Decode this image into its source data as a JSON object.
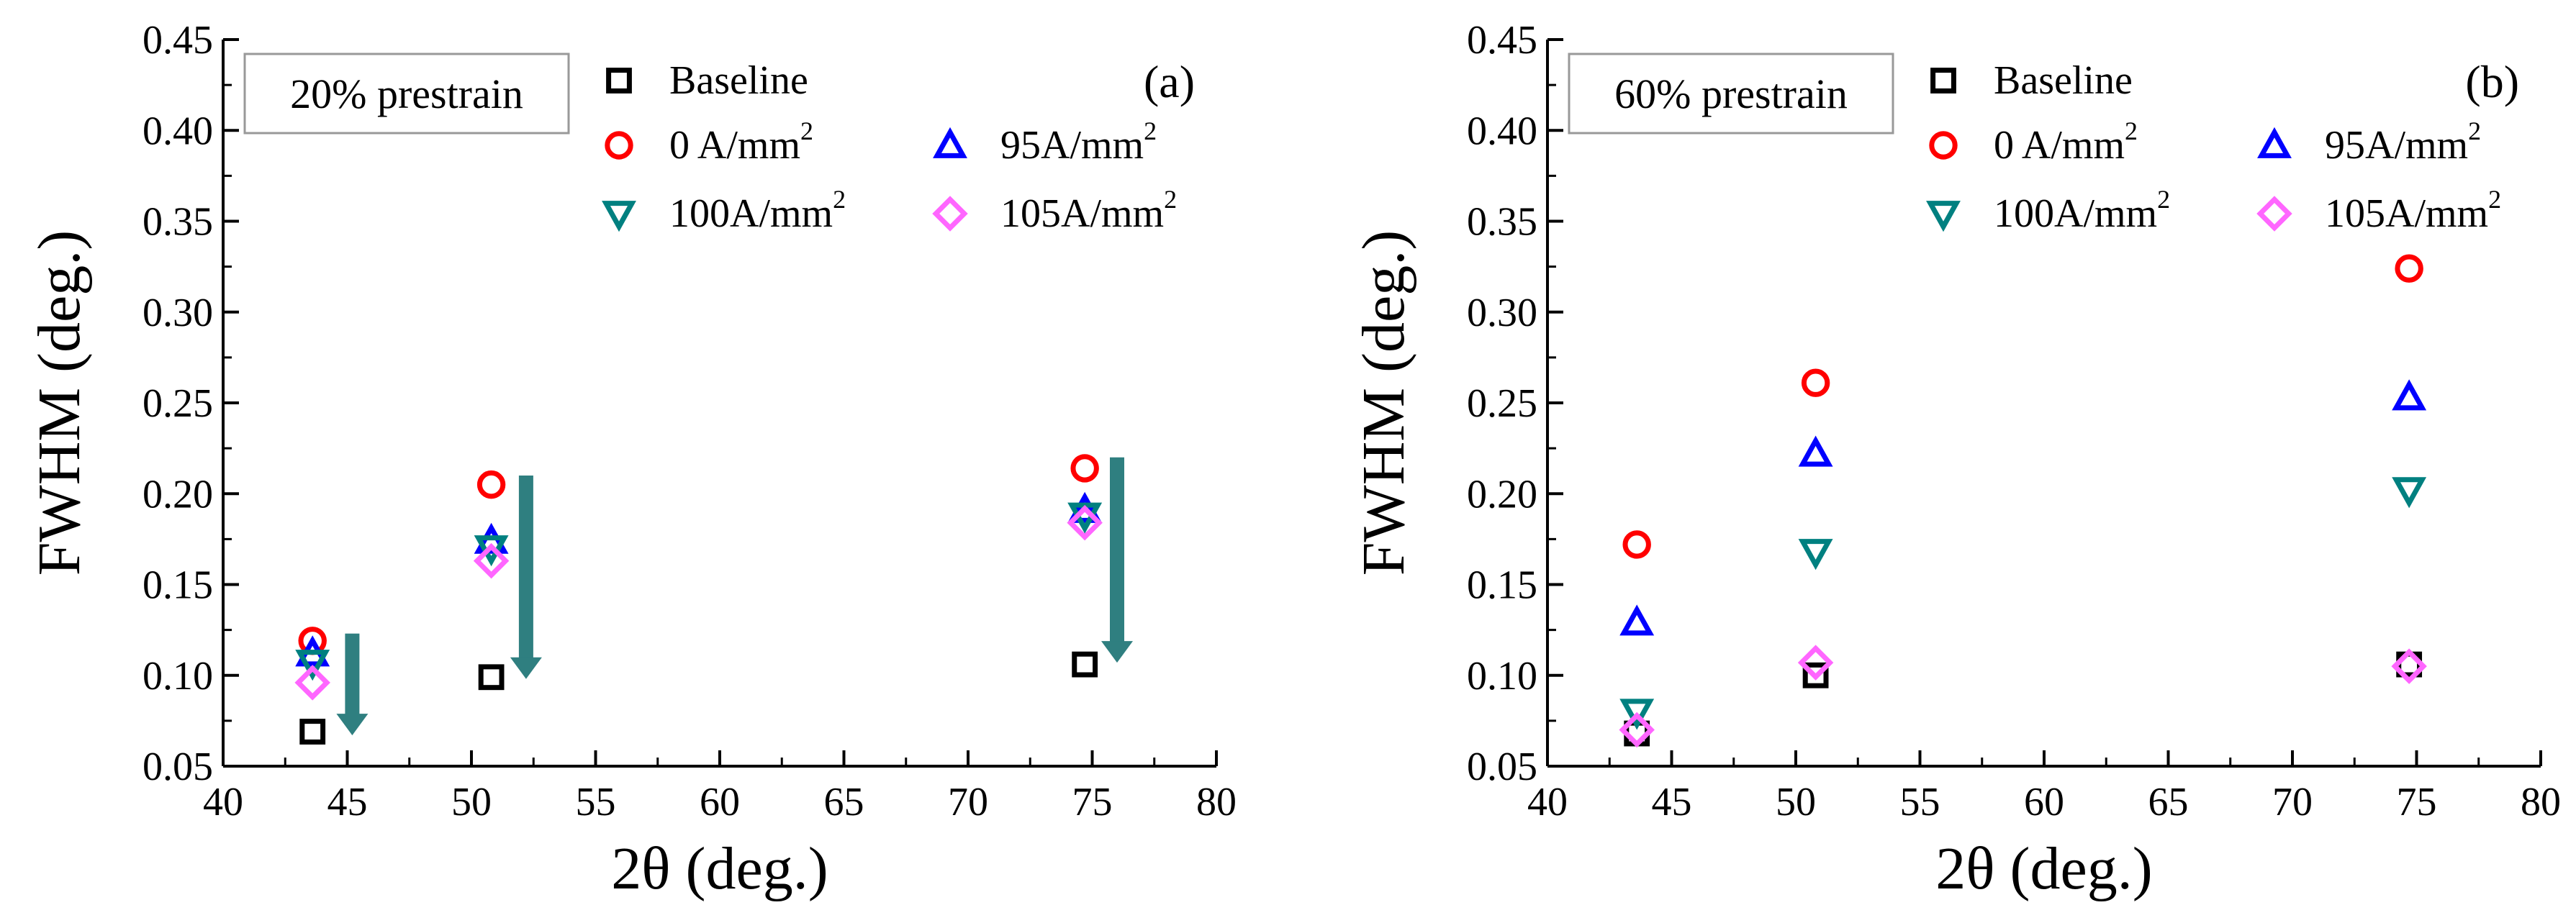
{
  "chart_data": [
    {
      "type": "scatter",
      "panel_label": "(a)",
      "annotation": "20% prestrain",
      "xlabel": "2θ (deg.)",
      "ylabel": "FWHM (deg.)",
      "xlim": [
        40,
        80
      ],
      "ylim": [
        0.05,
        0.45
      ],
      "xticks": [
        "40",
        "45",
        "50",
        "55",
        "60",
        "65",
        "70",
        "75",
        "80"
      ],
      "yticks": [
        "0.05",
        "0.10",
        "0.15",
        "0.20",
        "0.25",
        "0.30",
        "0.35",
        "0.40",
        "0.45"
      ],
      "series": [
        {
          "name": "Baseline",
          "superscript": "",
          "marker": "square",
          "color": "#000000",
          "x": [
            43.6,
            50.8,
            74.7
          ],
          "y": [
            0.069,
            0.099,
            0.106
          ]
        },
        {
          "name": "0 A/mm",
          "superscript": "2",
          "marker": "circle",
          "color": "#ff0000",
          "x": [
            43.6,
            50.8,
            74.7
          ],
          "y": [
            0.119,
            0.205,
            0.214
          ]
        },
        {
          "name": "95A/mm",
          "superscript": "2",
          "marker": "triangle-up",
          "color": "#0000ff",
          "x": [
            43.6,
            50.8,
            74.7
          ],
          "y": [
            0.112,
            0.174,
            0.191
          ]
        },
        {
          "name": "100A/mm",
          "superscript": "2",
          "marker": "triangle-down",
          "color": "#008080",
          "x": [
            43.6,
            50.8,
            74.7
          ],
          "y": [
            0.107,
            0.17,
            0.188
          ]
        },
        {
          "name": "105A/mm",
          "superscript": "2",
          "marker": "diamond",
          "color": "#ff66ff",
          "x": [
            43.6,
            50.8,
            74.7
          ],
          "y": [
            0.096,
            0.163,
            0.184
          ]
        }
      ],
      "arrows": [
        {
          "x": 45.2,
          "y_start": 0.123,
          "y_end": 0.067
        },
        {
          "x": 52.2,
          "y_start": 0.21,
          "y_end": 0.098
        },
        {
          "x": 76.0,
          "y_start": 0.22,
          "y_end": 0.107
        }
      ]
    },
    {
      "type": "scatter",
      "panel_label": "(b)",
      "annotation": "60% prestrain",
      "xlabel": "2θ (deg.)",
      "ylabel": "FWHM (deg.)",
      "xlim": [
        40,
        80
      ],
      "ylim": [
        0.05,
        0.45
      ],
      "xticks": [
        "40",
        "45",
        "50",
        "55",
        "60",
        "65",
        "70",
        "75",
        "80"
      ],
      "yticks": [
        "0.05",
        "0.10",
        "0.15",
        "0.20",
        "0.25",
        "0.30",
        "0.35",
        "0.40",
        "0.45"
      ],
      "series": [
        {
          "name": "Baseline",
          "superscript": "",
          "marker": "square",
          "color": "#000000",
          "x": [
            43.6,
            50.8,
            74.7
          ],
          "y": [
            0.068,
            0.1,
            0.106
          ]
        },
        {
          "name": "0 A/mm",
          "superscript": "2",
          "marker": "circle",
          "color": "#ff0000",
          "x": [
            43.6,
            50.8,
            74.7
          ],
          "y": [
            0.172,
            0.261,
            0.324
          ]
        },
        {
          "name": "95A/mm",
          "superscript": "2",
          "marker": "triangle-up",
          "color": "#0000ff",
          "x": [
            43.6,
            50.8,
            74.7
          ],
          "y": [
            0.129,
            0.222,
            0.253
          ]
        },
        {
          "name": "100A/mm",
          "superscript": "2",
          "marker": "triangle-down",
          "color": "#008080",
          "x": [
            43.6,
            50.8,
            74.7
          ],
          "y": [
            0.08,
            0.168,
            0.202
          ]
        },
        {
          "name": "105A/mm",
          "superscript": "2",
          "marker": "diamond",
          "color": "#ff66ff",
          "x": [
            43.6,
            50.8,
            74.7
          ],
          "y": [
            0.07,
            0.107,
            0.105
          ]
        }
      ],
      "arrows": []
    }
  ],
  "colors": {
    "arrow": "#2f7f80"
  }
}
